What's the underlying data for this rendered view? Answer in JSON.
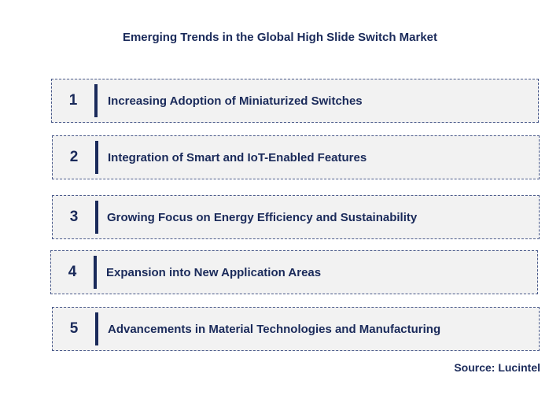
{
  "title": "Emerging Trends in the Global High Slide Switch Market",
  "trends": [
    {
      "number": "1",
      "label": "Increasing Adoption of Miniaturized Switches"
    },
    {
      "number": "2",
      "label": "Integration of Smart and IoT-Enabled Features"
    },
    {
      "number": "3",
      "label": "Growing Focus on Energy Efficiency and Sustainability"
    },
    {
      "number": "4",
      "label": "Expansion into New Application Areas"
    },
    {
      "number": "5",
      "label": "Advancements in Material  Technologies and Manufacturing"
    }
  ],
  "source": "Source: Lucintel",
  "colors": {
    "text": "#1a2a5a",
    "box_fill": "#f2f2f2",
    "box_border": "#4a5a8a"
  }
}
